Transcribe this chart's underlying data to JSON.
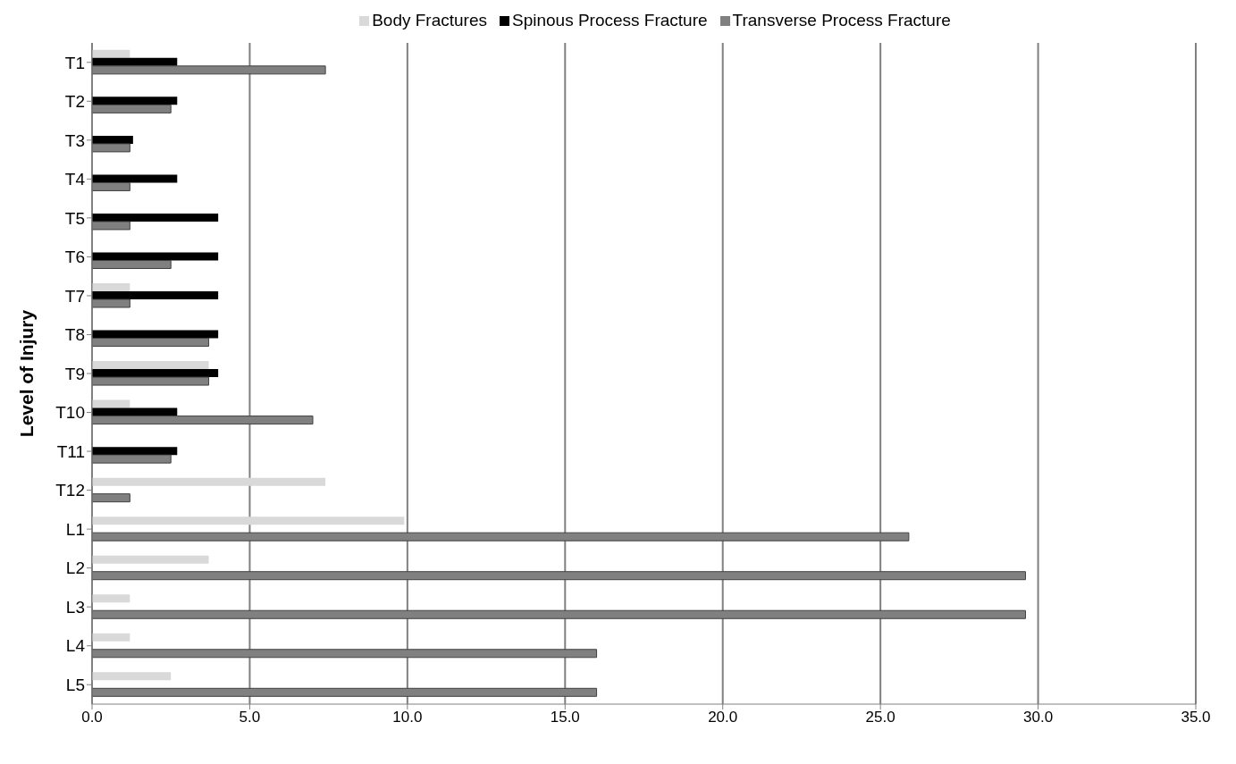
{
  "chart_data": {
    "type": "bar",
    "orientation": "horizontal",
    "ylabel": "Level of Injury",
    "categories": [
      "T1",
      "T2",
      "T3",
      "T4",
      "T5",
      "T6",
      "T7",
      "T8",
      "T9",
      "T10",
      "T11",
      "T12",
      "L1",
      "L2",
      "L3",
      "L4",
      "L5"
    ],
    "series": [
      {
        "name": "Body Fractures",
        "color": "#d9d9d9",
        "values": [
          1.2,
          null,
          null,
          null,
          null,
          null,
          1.2,
          null,
          3.7,
          1.2,
          null,
          7.4,
          9.9,
          3.7,
          1.2,
          1.2,
          2.5
        ]
      },
      {
        "name": "Spinous Process Fracture",
        "color": "#000000",
        "values": [
          2.7,
          2.7,
          1.3,
          2.7,
          4.0,
          4.0,
          4.0,
          4.0,
          4.0,
          2.7,
          2.7,
          null,
          null,
          null,
          null,
          null,
          null
        ]
      },
      {
        "name": "Transverse Process Fracture",
        "color": "#808080",
        "values": [
          7.4,
          2.5,
          1.2,
          1.2,
          1.2,
          2.5,
          1.2,
          3.7,
          3.7,
          7.0,
          2.5,
          1.2,
          25.9,
          29.6,
          29.6,
          16.0,
          16.0
        ]
      }
    ],
    "xlim": [
      0,
      35
    ],
    "xticks": [
      {
        "value": 0,
        "label": "0.0"
      },
      {
        "value": 5,
        "label": "5.0"
      },
      {
        "value": 10,
        "label": "10.0"
      },
      {
        "value": 15,
        "label": "15.0"
      },
      {
        "value": 20,
        "label": "20.0"
      },
      {
        "value": 25,
        "label": "25.0"
      },
      {
        "value": 30,
        "label": "30.0"
      },
      {
        "value": 35,
        "label": "35.0"
      }
    ],
    "grid": "x",
    "legend": "top"
  }
}
